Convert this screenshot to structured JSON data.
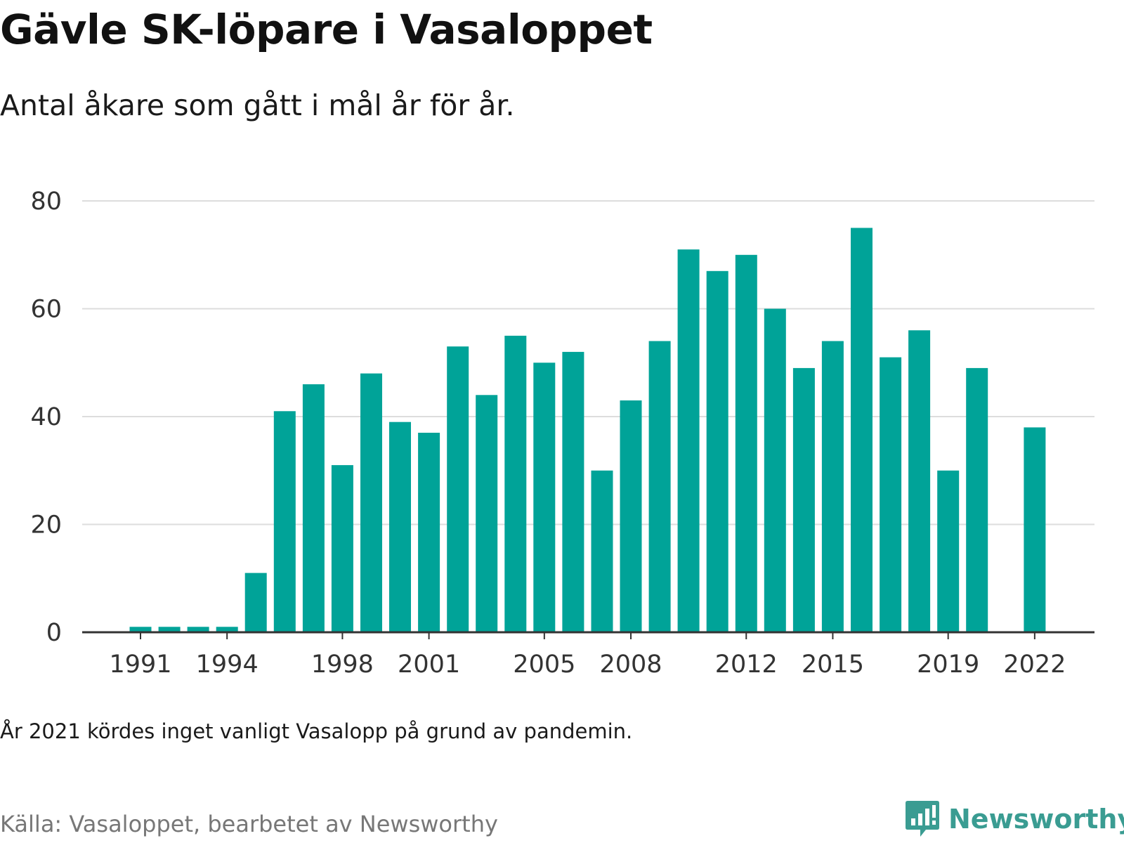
{
  "title": "Gävle SK-löpare i Vasaloppet",
  "subtitle": "Antal åkare som gått i mål år för år.",
  "note": "År 2021 kördes inget vanligt Vasalopp på grund av pandemin.",
  "source": "Källa: Vasaloppet, bearbetet av Newsworthy",
  "logo_text": "Newsworthy",
  "colors": {
    "bar": "#00a398",
    "grid": "#dddddd",
    "axis": "#333333",
    "logo": "#3a9c92"
  },
  "chart_data": {
    "type": "bar",
    "x": [
      1991,
      1992,
      1993,
      1994,
      1995,
      1996,
      1997,
      1998,
      1999,
      2000,
      2001,
      2002,
      2003,
      2004,
      2005,
      2006,
      2007,
      2008,
      2009,
      2010,
      2011,
      2012,
      2013,
      2014,
      2015,
      2016,
      2017,
      2018,
      2019,
      2020,
      2021,
      2022
    ],
    "values": [
      1,
      1,
      1,
      1,
      11,
      41,
      46,
      31,
      48,
      39,
      37,
      53,
      44,
      55,
      50,
      52,
      30,
      43,
      54,
      71,
      67,
      70,
      60,
      49,
      54,
      75,
      51,
      56,
      30,
      49,
      null,
      38
    ],
    "x_ticks": [
      "1991",
      "1994",
      "1998",
      "2001",
      "2005",
      "2008",
      "2012",
      "2015",
      "2019",
      "2022"
    ],
    "y_ticks": [
      "0",
      "20",
      "40",
      "60",
      "80"
    ],
    "ylim": [
      0,
      80
    ],
    "xlabel": "",
    "ylabel": "",
    "grid": true
  }
}
